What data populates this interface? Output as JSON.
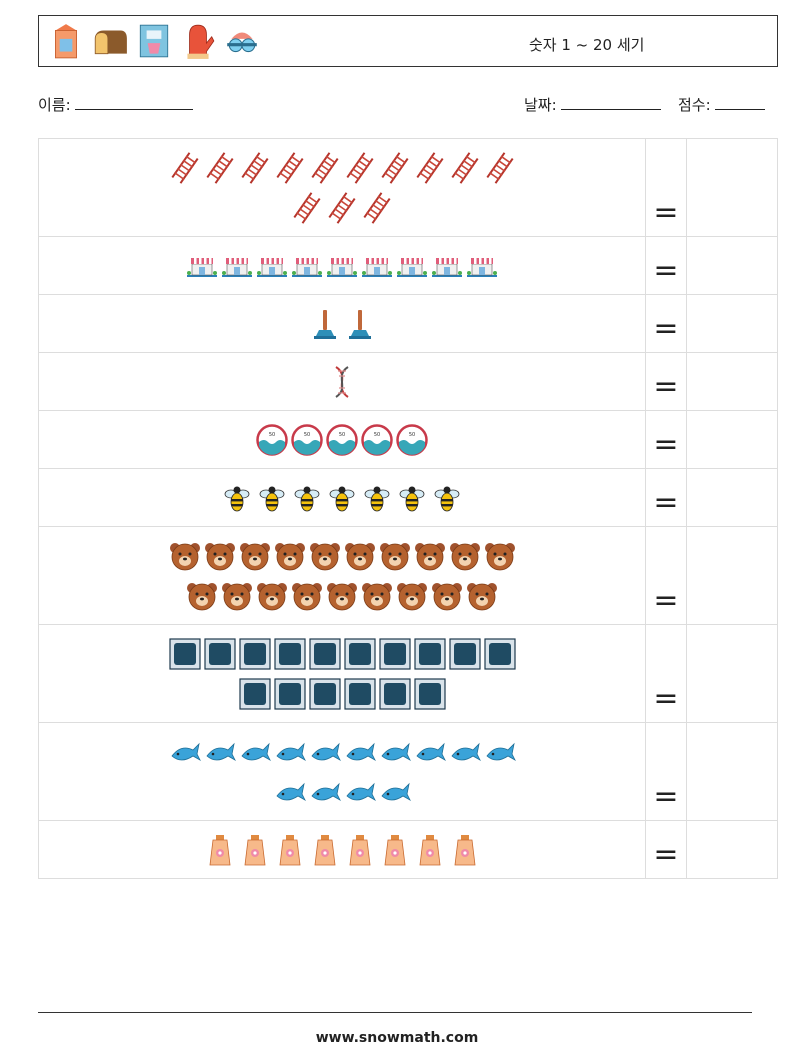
{
  "header": {
    "icons": [
      "milk-carton-icon",
      "bread-icon",
      "blender-icon",
      "oven-mitt-icon",
      "goggles-icon"
    ],
    "title": "숫자 1 ~ 20 세기"
  },
  "info": {
    "name_label": "이름:",
    "date_label": "날짜:",
    "score_label": "점수:"
  },
  "equals": "=",
  "rows": [
    {
      "icon": "ladder-icon",
      "lines": [
        10,
        3
      ],
      "height": 98
    },
    {
      "icon": "market-stall-icon",
      "lines": [
        9
      ],
      "height": 58
    },
    {
      "icon": "plunger-icon",
      "lines": [
        2
      ],
      "height": 58
    },
    {
      "icon": "dna-icon",
      "lines": [
        1
      ],
      "height": 58
    },
    {
      "icon": "wave-gauge-icon",
      "lines": [
        5
      ],
      "height": 58
    },
    {
      "icon": "bee-icon",
      "lines": [
        7
      ],
      "height": 58
    },
    {
      "icon": "bear-face-icon",
      "lines": [
        10,
        9
      ],
      "height": 98
    },
    {
      "icon": "frame-tile-icon",
      "lines": [
        10,
        6
      ],
      "height": 98
    },
    {
      "icon": "fish-icon",
      "lines": [
        10,
        4
      ],
      "height": 98
    },
    {
      "icon": "lotion-tube-icon",
      "lines": [
        8
      ],
      "height": 58
    }
  ],
  "footer": "www.snowmath.com"
}
